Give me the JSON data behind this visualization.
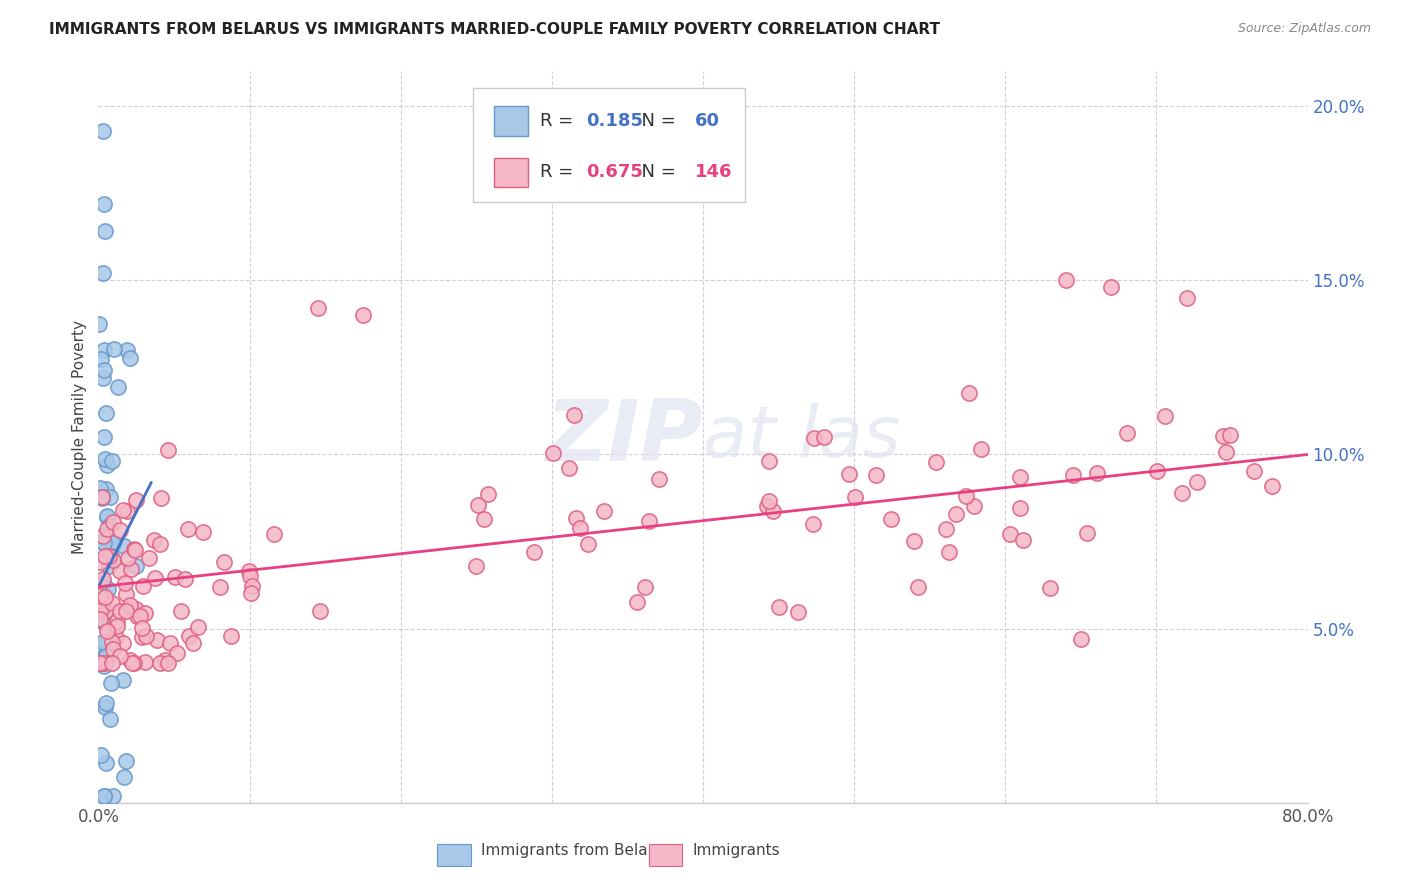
{
  "title": "IMMIGRANTS FROM BELARUS VS IMMIGRANTS MARRIED-COUPLE FAMILY POVERTY CORRELATION CHART",
  "source": "Source: ZipAtlas.com",
  "ylabel": "Married-Couple Family Poverty",
  "legend_blue_r": "0.185",
  "legend_blue_n": "60",
  "legend_pink_r": "0.675",
  "legend_pink_n": "146",
  "blue_color": "#a8c8e8",
  "blue_edge_color": "#6699cc",
  "pink_color": "#f4b8c8",
  "pink_edge_color": "#e06080",
  "blue_line_color": "#4472c4",
  "pink_line_color": "#e84080",
  "background_color": "#ffffff",
  "xlim": [
    0,
    0.8
  ],
  "ylim": [
    0,
    0.21
  ],
  "watermark_color": "#e0e4f0"
}
